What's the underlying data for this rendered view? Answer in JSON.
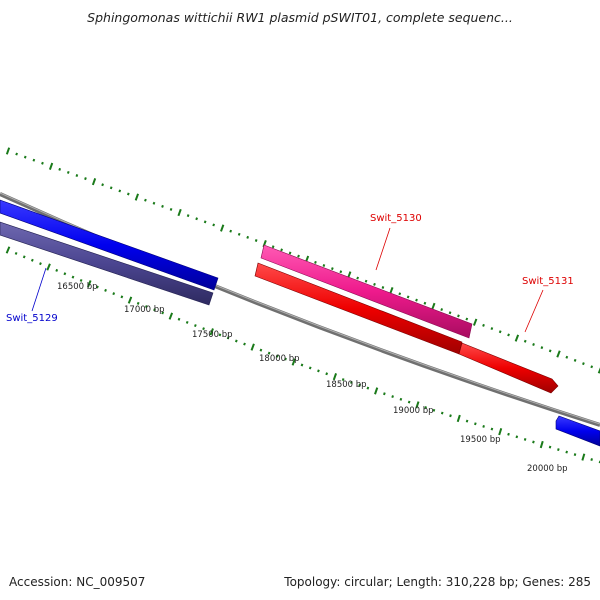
{
  "title": "Sphingomonas wittichii RW1 plasmid pSWIT01, complete sequenc...",
  "footer": {
    "accession": "Accession: NC_009507",
    "summary": "Topology: circular; Length: 310,228 bp; Genes: 285"
  },
  "colors": {
    "backbone": "#808080",
    "tick_green": "#1a7a1a",
    "forward_blue": "#0000ee",
    "reverse_slate": "#4b4590",
    "pink": "#ee1a8c",
    "red": "#ee0000",
    "label_blue": "#0000cc",
    "label_red": "#dd0000"
  },
  "scale_labels": [
    "16500 bp",
    "17000 bp",
    "17500 bp",
    "18000 bp",
    "18500 bp",
    "19000 bp",
    "19500 bp",
    "20000 bp"
  ],
  "gene_labels": {
    "swit_5129": "Swit_5129",
    "swit_5130": "Swit_5130",
    "swit_5131": "Swit_5131"
  }
}
